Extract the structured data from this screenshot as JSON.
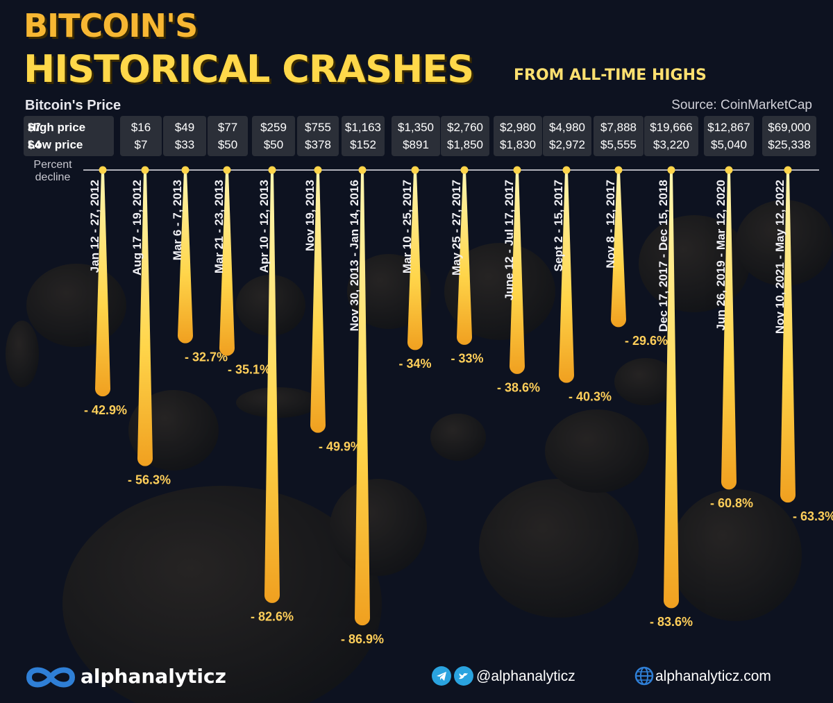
{
  "header": {
    "title_line1": "BITCOIN'S",
    "title_line2": "HISTORICAL CRASHES",
    "subtitle": "FROM ALL-TIME HIGHS",
    "price_heading": "Bitcoin's Price",
    "source": "Source: CoinMarketCap",
    "high_label": "High price",
    "low_label": "Low price",
    "percent_label_line1": "Percent",
    "percent_label_line2": "decline"
  },
  "colors": {
    "background": "#0d1220",
    "accent": "#f7b733",
    "drip": "#ffd54a",
    "label": "#ffcf5a",
    "box": "#2b2f38"
  },
  "chart_data": {
    "type": "bar",
    "orientation": "downward",
    "title": "BITCOIN'S HISTORICAL CRASHES",
    "subtitle": "FROM ALL-TIME HIGHS",
    "ylabel": "Percent decline",
    "ylim": [
      0,
      100
    ],
    "categories": [
      "Jan 12 - 27, 2012",
      "Aug 17 - 19, 2012",
      "Mar 6 - 7, 2013",
      "Mar 21 - 23, 2013",
      "Apr 10 - 12, 2013",
      "Nov 19, 2013",
      "Nov 30, 2013 - Jan 14, 2016",
      "Mar 10 - 25, 2017",
      "May 25 - 27, 2017",
      "June 12 - Jul 17, 2017",
      "Sept 2 - 15, 2017",
      "Nov 8 - 12, 2017",
      "Dec 17, 2017 - Dec 15, 2018",
      "Jun 26, 2019 - Mar 12, 2020",
      "Nov 10, 2021 - May 12, 2022"
    ],
    "values": [
      42.9,
      56.3,
      32.7,
      35.1,
      82.6,
      49.9,
      86.9,
      34,
      33,
      38.6,
      40.3,
      29.6,
      83.6,
      60.8,
      63.3
    ],
    "value_labels": [
      "- 42.9%",
      "- 56.3%",
      "- 32.7%",
      "- 35.1%",
      "- 82.6%",
      "- 49.9%",
      "- 86.9%",
      "- 34%",
      "- 33%",
      "- 38.6%",
      "- 40.3%",
      "- 29.6%",
      "- 83.6%",
      "- 60.8%",
      "- 63.3%"
    ],
    "high_prices": [
      "$7",
      "$16",
      "$49",
      "$77",
      "$259",
      "$755",
      "$1,163",
      "$1,350",
      "$2,760",
      "$2,980",
      "$4,980",
      "$7,888",
      "$19,666",
      "$12,867",
      "$69,000"
    ],
    "low_prices": [
      "$4",
      "$7",
      "$33",
      "$50",
      "$50",
      "$378",
      "$152",
      "$891",
      "$1,850",
      "$1,830",
      "$2,972",
      "$5,555",
      "$3,220",
      "$5,040",
      "$25,338"
    ],
    "grid": false,
    "legend": "none"
  },
  "footer": {
    "brand": "alphanalyticz",
    "social_handle": "@alphanalyticz",
    "website": "alphanalyticz.com"
  }
}
